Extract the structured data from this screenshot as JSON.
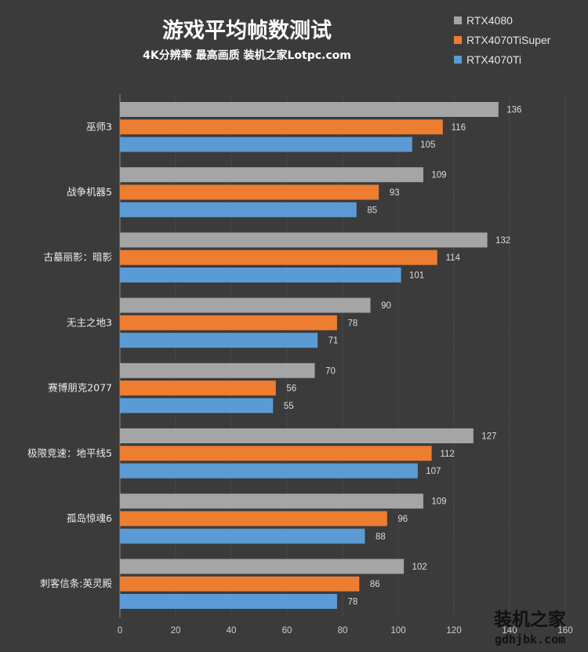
{
  "chart_data": {
    "type": "bar",
    "orientation": "horizontal",
    "title": "游戏平均帧数测试",
    "subtitle": "4K分辨率 最高画质 装机之家Lotpc.com",
    "categories": [
      "巫师3",
      "战争机器5",
      "古墓丽影：暗影",
      "无主之地3",
      "赛博朋克2077",
      "极限竞速：地平线5",
      "孤岛惊魂6",
      "刺客信条:英灵殿"
    ],
    "series": [
      {
        "name": "RTX4080",
        "color": "#a5a5a5",
        "values": [
          136,
          109,
          132,
          90,
          70,
          127,
          109,
          102
        ]
      },
      {
        "name": "RTX4070TiSuper",
        "color": "#ed7d31",
        "values": [
          116,
          93,
          114,
          78,
          56,
          112,
          96,
          86
        ]
      },
      {
        "name": "RTX4070Ti",
        "color": "#5b9bd5",
        "values": [
          105,
          85,
          101,
          71,
          55,
          107,
          88,
          78
        ]
      }
    ],
    "xlim": [
      0,
      160
    ],
    "xticks": [
      0,
      20,
      40,
      60,
      80,
      100,
      120,
      140,
      160
    ],
    "grid": true,
    "legend": "top-right",
    "data_labels": true
  },
  "watermark": {
    "main": "装机之家",
    "sub": "gdhjbk.com"
  }
}
